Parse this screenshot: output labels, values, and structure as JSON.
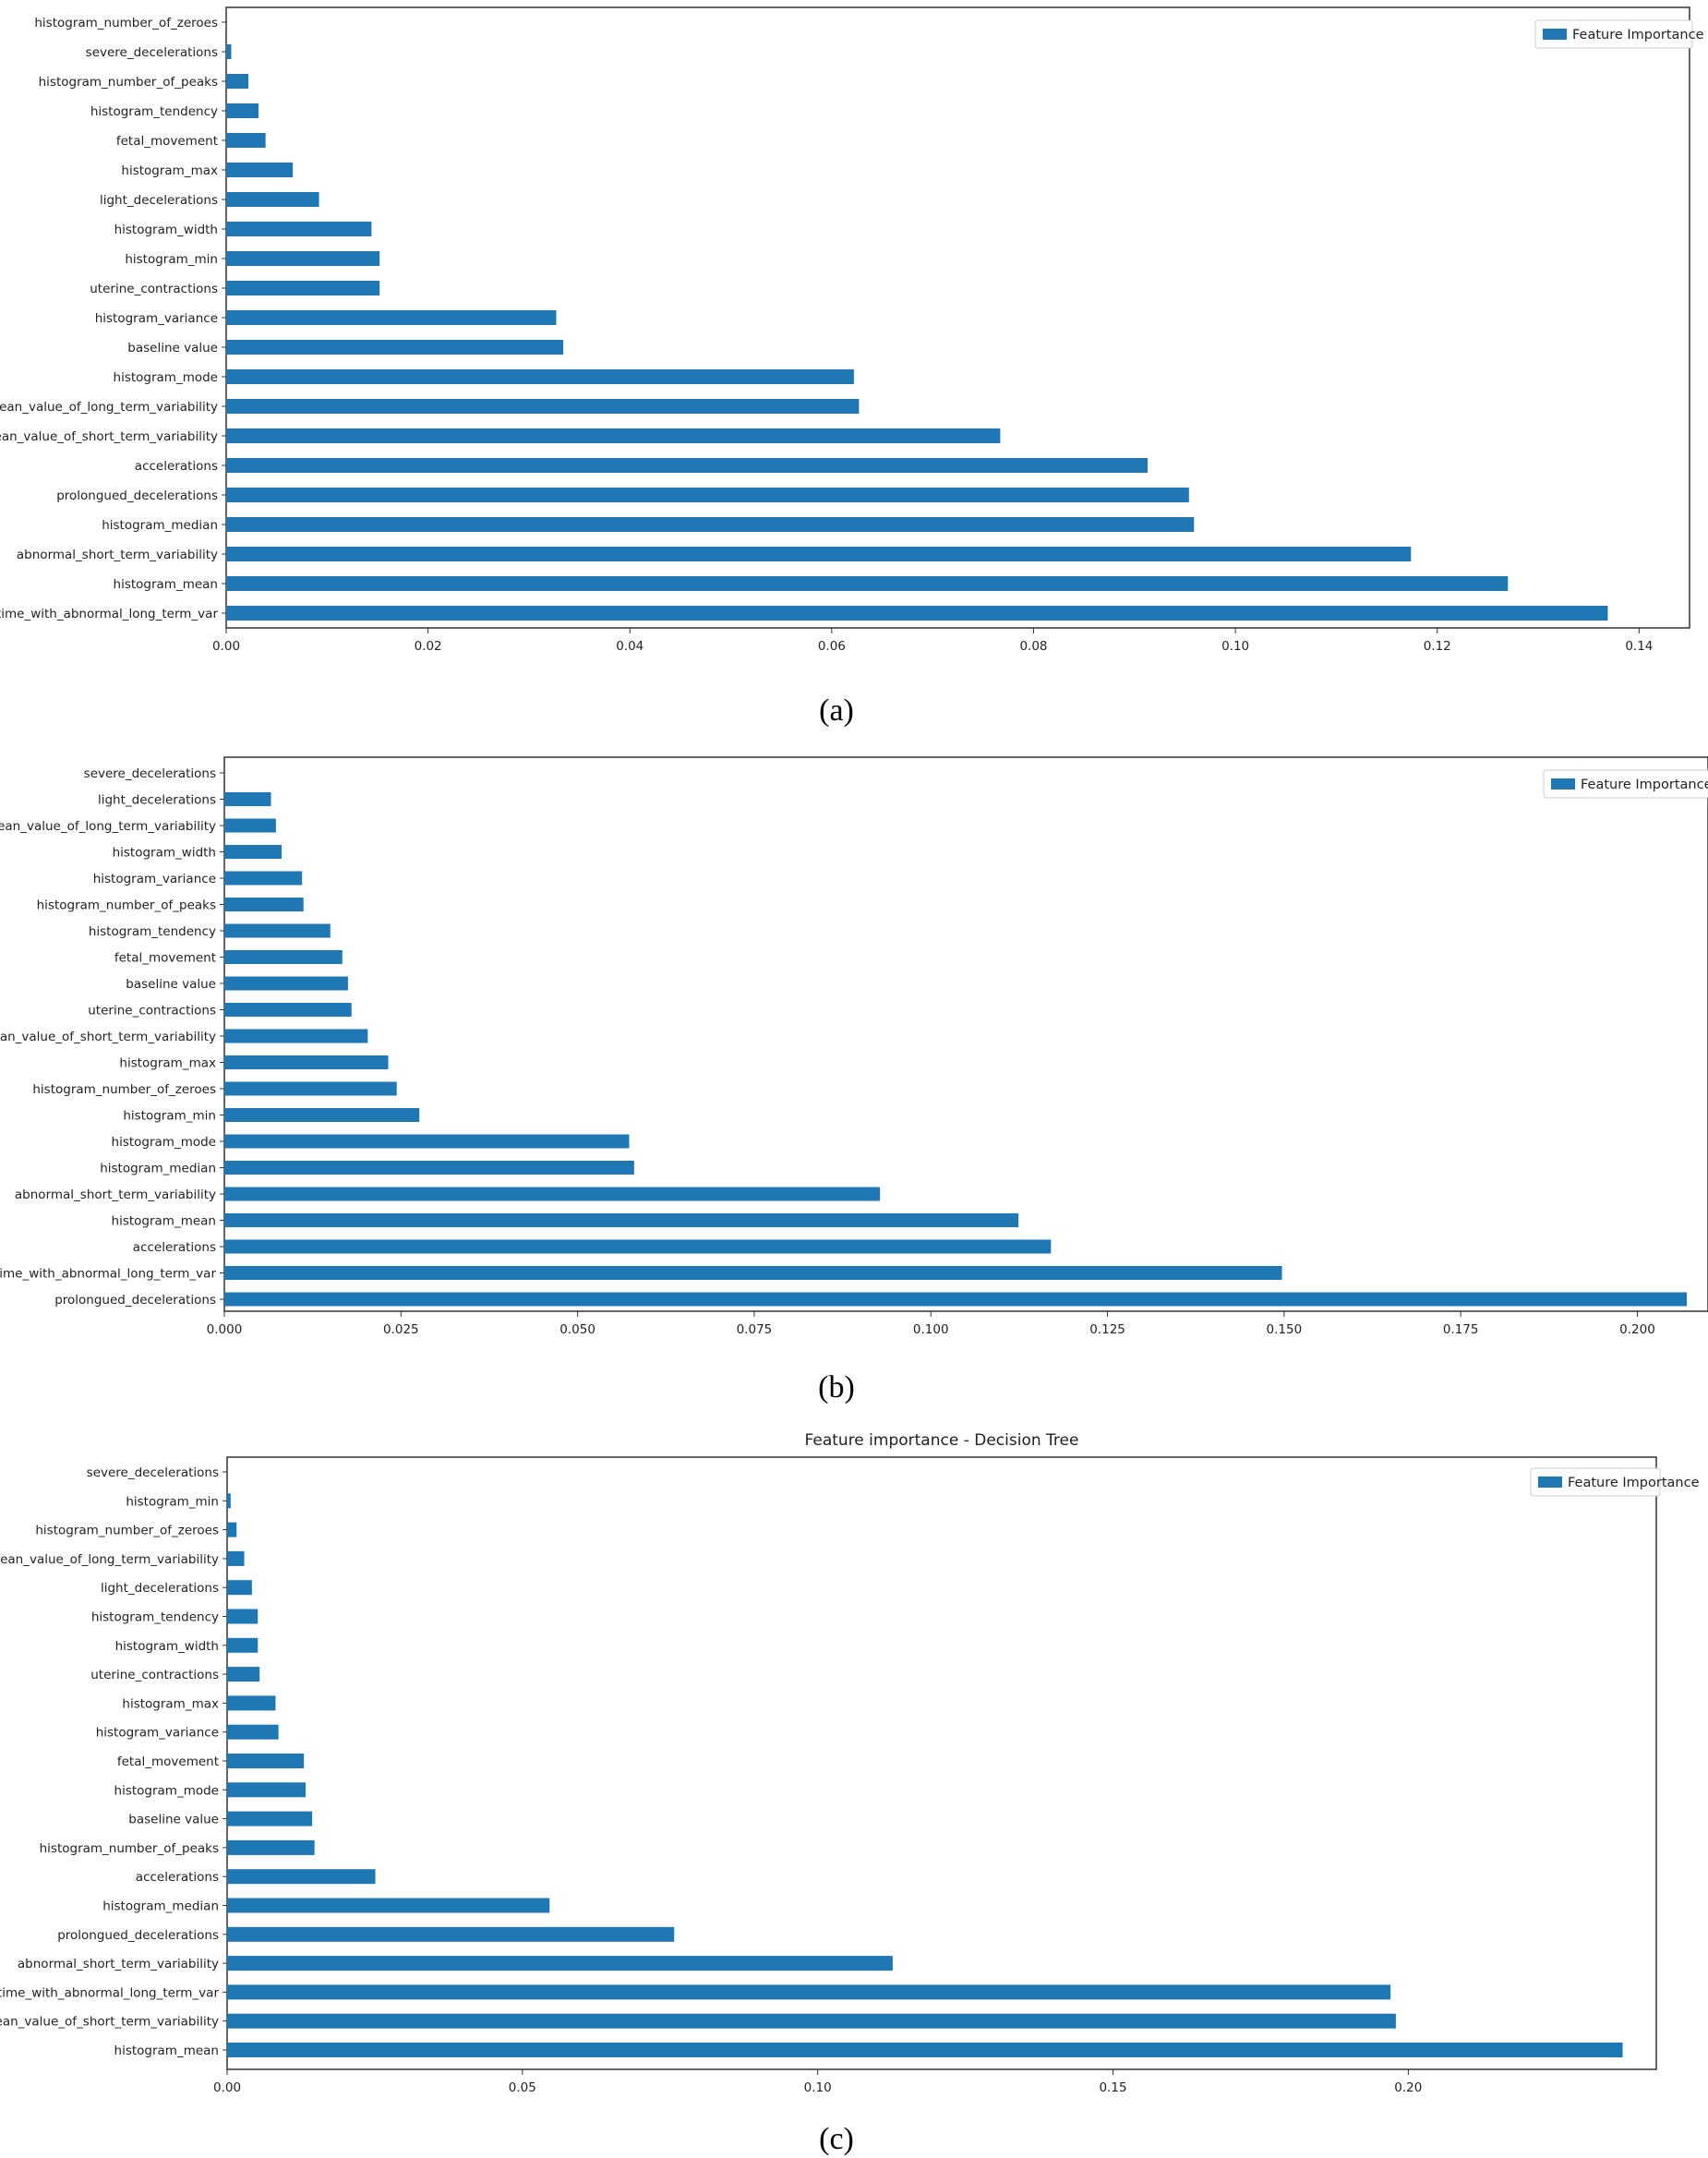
{
  "colors": {
    "bar": "#1f77b4",
    "frame": "#333333"
  },
  "chart_data": [
    {
      "type": "bar",
      "orientation": "horizontal",
      "panel_label": "(a)",
      "title": "",
      "legend": "Feature Importance",
      "legend_position": "top-right",
      "xlim": [
        0,
        0.145
      ],
      "xticks": [
        0.0,
        0.02,
        0.04,
        0.06,
        0.08,
        0.1,
        0.12,
        0.14
      ],
      "xtick_labels": [
        "0.00",
        "0.02",
        "0.04",
        "0.06",
        "0.08",
        "0.10",
        "0.12",
        "0.14"
      ],
      "categories": [
        "histogram_number_of_zeroes",
        "severe_decelerations",
        "histogram_number_of_peaks",
        "histogram_tendency",
        "fetal_movement",
        "histogram_max",
        "light_decelerations",
        "histogram_width",
        "histogram_min",
        "uterine_contractions",
        "histogram_variance",
        "baseline value",
        "histogram_mode",
        "mean_value_of_long_term_variability",
        "mean_value_of_short_term_variability",
        "accelerations",
        "prolongued_decelerations",
        "histogram_median",
        "abnormal_short_term_variability",
        "histogram_mean",
        "%_time_with_abnormal_long_term_var"
      ],
      "values": [
        0.0,
        0.0005,
        0.0022,
        0.0032,
        0.0039,
        0.0066,
        0.0092,
        0.0144,
        0.0152,
        0.0152,
        0.0327,
        0.0334,
        0.0622,
        0.0627,
        0.0767,
        0.0913,
        0.0954,
        0.0959,
        0.1174,
        0.127,
        0.1369
      ]
    },
    {
      "type": "bar",
      "orientation": "horizontal",
      "panel_label": "(b)",
      "title": "",
      "legend": "Feature Importance",
      "legend_position": "top-right",
      "xlim": [
        0,
        0.21
      ],
      "xticks": [
        0.0,
        0.025,
        0.05,
        0.075,
        0.1,
        0.125,
        0.15,
        0.175,
        0.2
      ],
      "xtick_labels": [
        "0.000",
        "0.025",
        "0.050",
        "0.075",
        "0.100",
        "0.125",
        "0.150",
        "0.175",
        "0.200"
      ],
      "categories": [
        "severe_decelerations",
        "light_decelerations",
        "mean_value_of_long_term_variability",
        "histogram_width",
        "histogram_variance",
        "histogram_number_of_peaks",
        "histogram_tendency",
        "fetal_movement",
        "baseline value",
        "uterine_contractions",
        "mean_value_of_short_term_variability",
        "histogram_max",
        "histogram_number_of_zeroes",
        "histogram_min",
        "histogram_mode",
        "histogram_median",
        "abnormal_short_term_variability",
        "histogram_mean",
        "accelerations",
        "%_time_with_abnormal_long_term_var",
        "prolongued_decelerations"
      ],
      "values": [
        0.0,
        0.0066,
        0.0073,
        0.0081,
        0.011,
        0.0112,
        0.015,
        0.0167,
        0.0175,
        0.018,
        0.0203,
        0.0232,
        0.0244,
        0.0276,
        0.0573,
        0.058,
        0.0928,
        0.1124,
        0.117,
        0.1497,
        0.207
      ]
    },
    {
      "type": "bar",
      "orientation": "horizontal",
      "panel_label": "(c)",
      "title": "Feature importance - Decision Tree",
      "legend": "Feature Importance",
      "legend_position": "top-right",
      "xlim": [
        0,
        0.242
      ],
      "xticks": [
        0.0,
        0.05,
        0.1,
        0.15,
        0.2
      ],
      "xtick_labels": [
        "0.00",
        "0.05",
        "0.10",
        "0.15",
        "0.20"
      ],
      "categories": [
        "severe_decelerations",
        "histogram_min",
        "histogram_number_of_zeroes",
        "mean_value_of_long_term_variability",
        "light_decelerations",
        "histogram_tendency",
        "histogram_width",
        "uterine_contractions",
        "histogram_max",
        "histogram_variance",
        "fetal_movement",
        "histogram_mode",
        "baseline value",
        "histogram_number_of_peaks",
        "accelerations",
        "histogram_median",
        "prolongued_decelerations",
        "abnormal_short_term_variability",
        "%_time_with_abnormal_long_term_var",
        "mean_value_of_short_term_variability",
        "histogram_mean"
      ],
      "values": [
        0.0,
        0.0006,
        0.0016,
        0.0029,
        0.0042,
        0.0052,
        0.0052,
        0.0055,
        0.0082,
        0.0087,
        0.013,
        0.0133,
        0.0144,
        0.0148,
        0.0251,
        0.0546,
        0.0757,
        0.1127,
        0.197,
        0.1979,
        0.2363
      ]
    }
  ]
}
